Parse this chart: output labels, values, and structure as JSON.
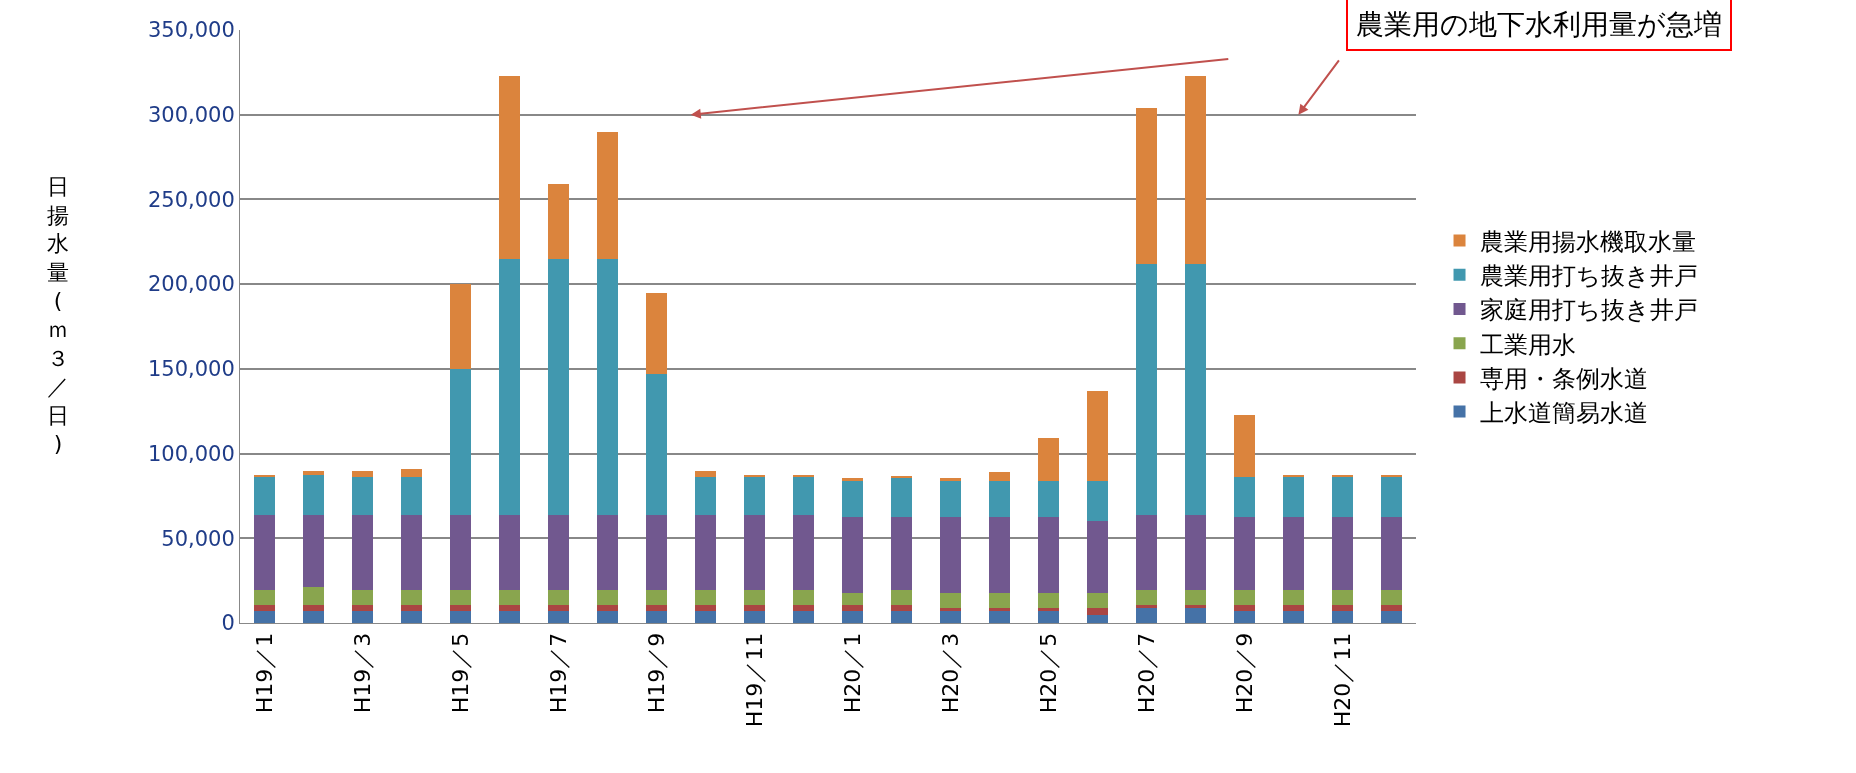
{
  "chart_data": {
    "type": "bar",
    "stacked": true,
    "ylabel": "日揚水量(ｍ３／日)",
    "categories": [
      "H19／1",
      null,
      "H19／3",
      null,
      "H19／5",
      null,
      "H19／7",
      null,
      "H19／9",
      null,
      "H19／11",
      null,
      "H20／1",
      null,
      "H20／3",
      null,
      "H20／5",
      null,
      "H20／7",
      null,
      "H20／9",
      null,
      "H20／11",
      null
    ],
    "series": [
      {
        "name": "上水道簡易水道",
        "color": "#4572a7",
        "values": [
          7000,
          7000,
          7000,
          7000,
          7000,
          7000,
          7000,
          7000,
          7000,
          7000,
          7000,
          7000,
          7000,
          7000,
          7000,
          7000,
          7000,
          5000,
          9000,
          9000,
          7000,
          7000,
          7000,
          7000
        ]
      },
      {
        "name": "専用・条例水道",
        "color": "#aa4643",
        "values": [
          3500,
          3500,
          3500,
          3500,
          3500,
          3500,
          3500,
          3500,
          3500,
          3500,
          3500,
          3500,
          3500,
          3500,
          2000,
          2000,
          2000,
          4000,
          1500,
          1500,
          3500,
          3500,
          3500,
          3500
        ]
      },
      {
        "name": "工業用水",
        "color": "#89a54e",
        "values": [
          9000,
          10500,
          9000,
          9000,
          9000,
          9000,
          9000,
          9000,
          9000,
          9000,
          9000,
          9000,
          7000,
          9000,
          8500,
          8500,
          8500,
          8500,
          9000,
          9000,
          9000,
          9000,
          9000,
          9000
        ]
      },
      {
        "name": "家庭用打ち抜き井戸",
        "color": "#71588f",
        "values": [
          44500,
          43000,
          44500,
          44500,
          44500,
          44500,
          44500,
          44500,
          44500,
          44500,
          44500,
          44500,
          45000,
          43000,
          45000,
          45000,
          45000,
          42500,
          44500,
          44500,
          43000,
          43000,
          43000,
          43000
        ]
      },
      {
        "name": "農業用打ち抜き井戸",
        "color": "#4198af",
        "values": [
          22000,
          23500,
          22000,
          22000,
          86000,
          151000,
          151000,
          151000,
          83000,
          22000,
          22000,
          22000,
          21500,
          23500,
          21500,
          21500,
          21500,
          24000,
          148000,
          148000,
          23500,
          23500,
          23500,
          23500
        ]
      },
      {
        "name": "農業用揚水機取水量",
        "color": "#db843d",
        "values": [
          1500,
          2000,
          3500,
          5000,
          50000,
          108000,
          44000,
          75000,
          48000,
          3500,
          1500,
          1500,
          1500,
          1000,
          1500,
          5000,
          25000,
          53000,
          92000,
          111000,
          37000,
          1500,
          1500,
          1500
        ]
      }
    ],
    "ylim": [
      0,
      350000
    ],
    "yticks": [
      {
        "value": 0,
        "label": "0"
      },
      {
        "value": 50000,
        "label": "50,000"
      },
      {
        "value": 100000,
        "label": "100,000"
      },
      {
        "value": 150000,
        "label": "150,000"
      },
      {
        "value": 200000,
        "label": "200,000"
      },
      {
        "value": 250000,
        "label": "250,000"
      },
      {
        "value": 300000,
        "label": "300,000"
      },
      {
        "value": 350000,
        "label": "350,000"
      }
    ],
    "grid": "y",
    "legend": "right",
    "annotations": [
      "農業用の地下水利用量が急増"
    ]
  }
}
